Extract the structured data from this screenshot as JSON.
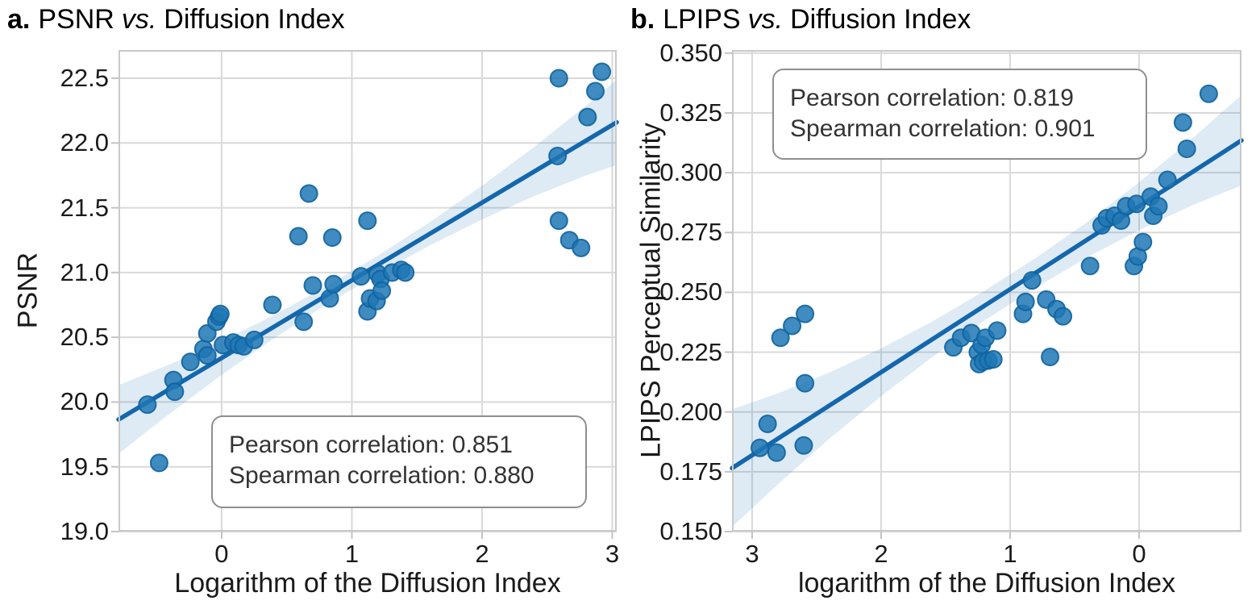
{
  "style": {
    "background": "#ffffff",
    "grid_color": "#d9d9d9",
    "spine_color": "#c9c9c9",
    "tick_mark_color": "#c3c3c3",
    "text_color": "#1a1a1a",
    "dot_fill": "#1f77b4",
    "dot_edge": "#10639f",
    "line_color": "#1467ad",
    "band_fill": "#1f77b4",
    "band_opacity": 0.15,
    "annotation_border": "#8f8f8f"
  },
  "chart_data": [
    {
      "id": "psnr-vs-diffusion-index",
      "type": "scatter",
      "title": {
        "prefix": "a.",
        "metric": "PSNR",
        "vs": "vs.",
        "rest": "Diffusion Index"
      },
      "xlabel": "Logarithm of the Diffusion Index",
      "ylabel": "PSNR",
      "xlim": [
        -0.792,
        3.034
      ],
      "ylim": [
        19.0,
        22.718
      ],
      "grid": true,
      "xticks": [
        {
          "v": 0,
          "label": "0"
        },
        {
          "v": 1,
          "label": "1"
        },
        {
          "v": 2,
          "label": "2"
        },
        {
          "v": 3,
          "label": "3"
        }
      ],
      "yticks": [
        {
          "v": 19.0,
          "label": "19.0"
        },
        {
          "v": 19.5,
          "label": "19.5"
        },
        {
          "v": 20.0,
          "label": "20.0"
        },
        {
          "v": 20.5,
          "label": "20.5"
        },
        {
          "v": 21.0,
          "label": "21.0"
        },
        {
          "v": 21.5,
          "label": "21.5"
        },
        {
          "v": 22.0,
          "label": "22.0"
        },
        {
          "v": 22.5,
          "label": "22.5"
        }
      ],
      "points": [
        [
          -0.57,
          19.98
        ],
        [
          -0.48,
          19.53
        ],
        [
          -0.37,
          20.17
        ],
        [
          -0.36,
          20.08
        ],
        [
          -0.24,
          20.31
        ],
        [
          -0.14,
          20.41
        ],
        [
          -0.11,
          20.53
        ],
        [
          -0.11,
          20.36
        ],
        [
          -0.04,
          20.62
        ],
        [
          -0.02,
          20.66
        ],
        [
          -0.01,
          20.68
        ],
        [
          0.01,
          20.44
        ],
        [
          0.09,
          20.46
        ],
        [
          0.13,
          20.44
        ],
        [
          0.17,
          20.43
        ],
        [
          0.25,
          20.48
        ],
        [
          0.39,
          20.75
        ],
        [
          0.59,
          21.28
        ],
        [
          0.63,
          20.62
        ],
        [
          0.67,
          21.61
        ],
        [
          0.7,
          20.9
        ],
        [
          0.83,
          20.8
        ],
        [
          0.85,
          21.27
        ],
        [
          0.86,
          20.91
        ],
        [
          1.07,
          20.97
        ],
        [
          1.12,
          21.4
        ],
        [
          1.12,
          20.7
        ],
        [
          1.14,
          20.8
        ],
        [
          1.19,
          20.78
        ],
        [
          1.2,
          20.99
        ],
        [
          1.22,
          20.95
        ],
        [
          1.23,
          20.86
        ],
        [
          1.31,
          21.0
        ],
        [
          1.38,
          21.02
        ],
        [
          1.41,
          21.0
        ],
        [
          2.58,
          21.9
        ],
        [
          2.59,
          22.5
        ],
        [
          2.59,
          21.4
        ],
        [
          2.67,
          21.25
        ],
        [
          2.76,
          21.19
        ],
        [
          2.81,
          22.2
        ],
        [
          2.87,
          22.4
        ],
        [
          2.92,
          22.55
        ]
      ],
      "regression": [
        [
          -0.792,
          19.865
        ],
        [
          3.034,
          22.16
        ]
      ],
      "ci_band": [
        [
          -0.792,
          20.13,
          19.6
        ],
        [
          -0.4,
          20.29,
          19.91
        ],
        [
          0.0,
          20.47,
          20.21
        ],
        [
          0.4,
          20.67,
          20.49
        ],
        [
          0.8,
          20.89,
          20.75
        ],
        [
          1.2,
          21.13,
          20.99
        ],
        [
          1.6,
          21.39,
          21.21
        ],
        [
          2.0,
          21.67,
          21.41
        ],
        [
          2.4,
          21.97,
          21.59
        ],
        [
          2.8,
          22.29,
          21.75
        ],
        [
          3.034,
          22.49,
          21.83
        ]
      ],
      "pearson": 0.851,
      "spearman": 0.88,
      "annotation": {
        "line1": "Pearson correlation: 0.851",
        "line2": "Spearman correlation: 0.880"
      }
    },
    {
      "id": "lpips-vs-diffusion-index",
      "type": "scatter",
      "title": {
        "prefix": "b.",
        "metric": "LPIPS",
        "vs": "vs.",
        "rest": "Diffusion Index"
      },
      "xlabel": "logarithm of the Diffusion Index",
      "ylabel": "LPIPS Perceptual Similarity",
      "xlim": [
        3.156,
        -0.794
      ],
      "ylim": [
        0.15,
        0.3513
      ],
      "grid": true,
      "x_axis_reversed": true,
      "xticks": [
        {
          "v": 3,
          "label": "3"
        },
        {
          "v": 2,
          "label": "2"
        },
        {
          "v": 1,
          "label": "1"
        },
        {
          "v": 0,
          "label": "0"
        }
      ],
      "yticks": [
        {
          "v": 0.15,
          "label": "0.150"
        },
        {
          "v": 0.175,
          "label": "0.175"
        },
        {
          "v": 0.2,
          "label": "0.200"
        },
        {
          "v": 0.225,
          "label": "0.225"
        },
        {
          "v": 0.25,
          "label": "0.250"
        },
        {
          "v": 0.275,
          "label": "0.275"
        },
        {
          "v": 0.3,
          "label": "0.300"
        },
        {
          "v": 0.325,
          "label": "0.325"
        },
        {
          "v": 0.35,
          "label": "0.350"
        }
      ],
      "points": [
        [
          2.94,
          0.185
        ],
        [
          2.88,
          0.195
        ],
        [
          2.81,
          0.183
        ],
        [
          2.78,
          0.231
        ],
        [
          2.69,
          0.236
        ],
        [
          2.6,
          0.186
        ],
        [
          2.59,
          0.241
        ],
        [
          2.59,
          0.212
        ],
        [
          1.44,
          0.227
        ],
        [
          1.38,
          0.231
        ],
        [
          1.3,
          0.233
        ],
        [
          1.25,
          0.225
        ],
        [
          1.24,
          0.22
        ],
        [
          1.22,
          0.228
        ],
        [
          1.21,
          0.221
        ],
        [
          1.19,
          0.231
        ],
        [
          1.17,
          0.2215
        ],
        [
          1.13,
          0.222
        ],
        [
          1.1,
          0.234
        ],
        [
          0.9,
          0.241
        ],
        [
          0.88,
          0.246
        ],
        [
          0.83,
          0.255
        ],
        [
          0.72,
          0.247
        ],
        [
          0.69,
          0.223
        ],
        [
          0.64,
          0.243
        ],
        [
          0.59,
          0.24
        ],
        [
          0.38,
          0.261
        ],
        [
          0.29,
          0.278
        ],
        [
          0.25,
          0.281
        ],
        [
          0.19,
          0.282
        ],
        [
          0.14,
          0.28
        ],
        [
          0.1,
          0.286
        ],
        [
          0.04,
          0.261
        ],
        [
          0.02,
          0.287
        ],
        [
          0.01,
          0.265
        ],
        [
          -0.03,
          0.271
        ],
        [
          -0.09,
          0.29
        ],
        [
          -0.11,
          0.282
        ],
        [
          -0.15,
          0.286
        ],
        [
          -0.22,
          0.297
        ],
        [
          -0.34,
          0.321
        ],
        [
          -0.37,
          0.31
        ],
        [
          -0.54,
          0.333
        ]
      ],
      "regression": [
        [
          3.156,
          0.1765
        ],
        [
          -0.794,
          0.3135
        ]
      ],
      "ci_band": [
        [
          3.156,
          0.2011,
          0.1519
        ],
        [
          2.8,
          0.2078,
          0.1698
        ],
        [
          2.4,
          0.2165,
          0.1889
        ],
        [
          2.0,
          0.2266,
          0.2066
        ],
        [
          1.6,
          0.2379,
          0.2231
        ],
        [
          1.2,
          0.2506,
          0.2382
        ],
        [
          0.8,
          0.2644,
          0.252
        ],
        [
          0.4,
          0.2795,
          0.2647
        ],
        [
          0.0,
          0.296,
          0.276
        ],
        [
          -0.4,
          0.3137,
          0.2861
        ],
        [
          -0.794,
          0.3325,
          0.2947
        ]
      ],
      "pearson": 0.819,
      "spearman": 0.901,
      "annotation": {
        "line1": "Pearson correlation: 0.819",
        "line2": "Spearman correlation: 0.901"
      }
    }
  ]
}
